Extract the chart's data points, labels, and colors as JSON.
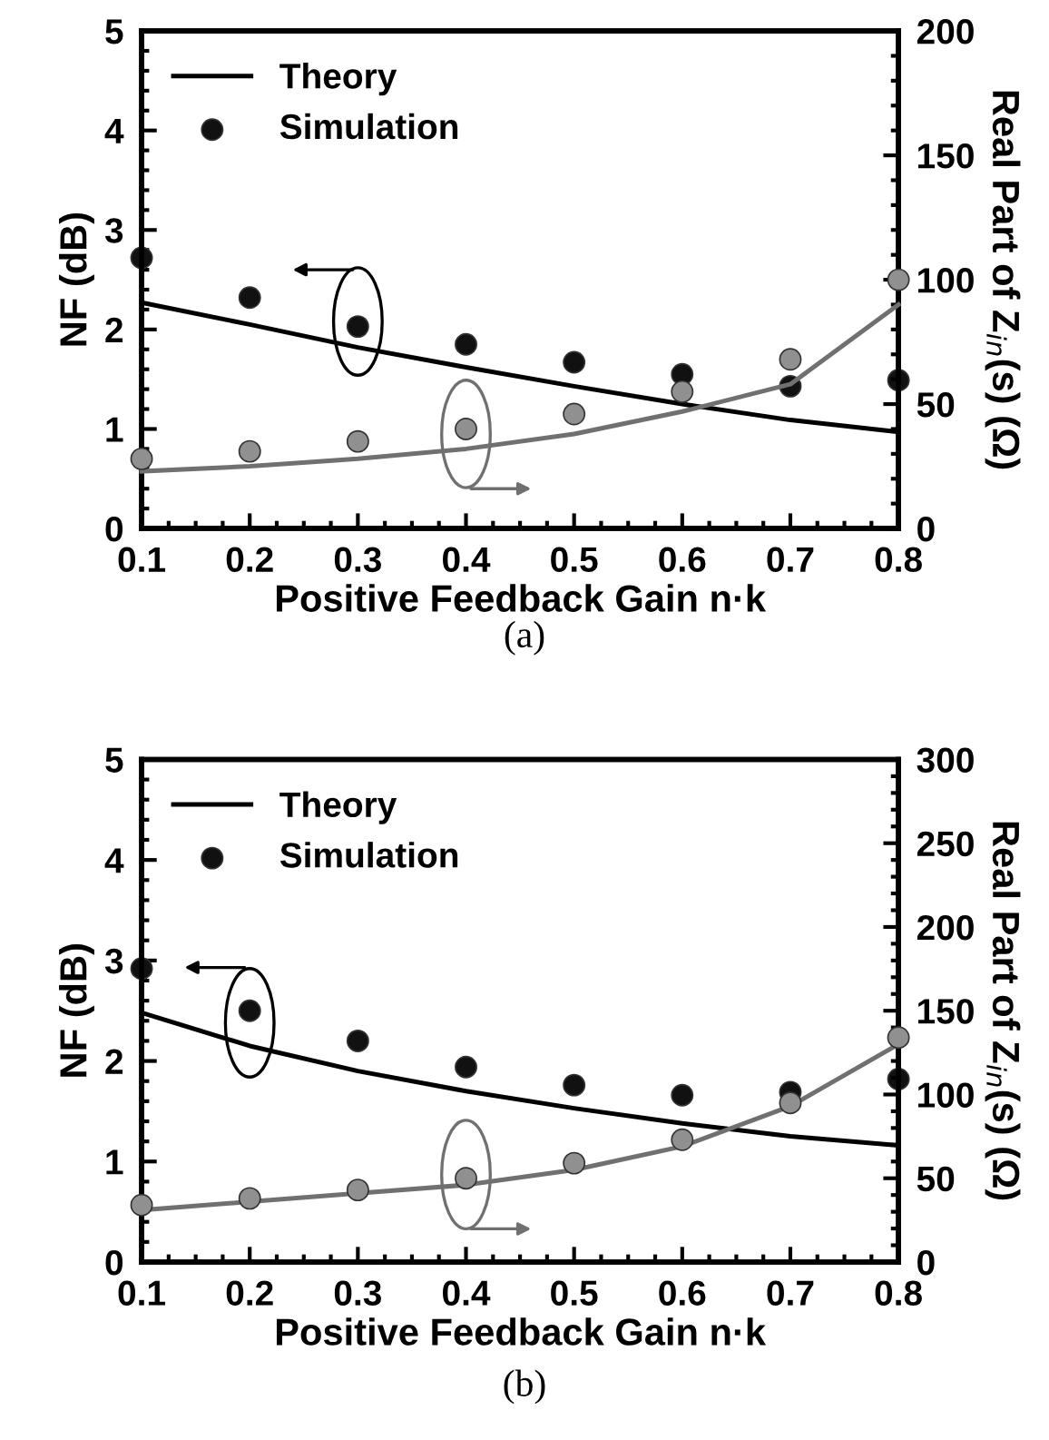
{
  "chart_data": [
    {
      "type": "line",
      "xlabel": "Positive Feedback Gain n·k",
      "ylabel": "NF (dB)",
      "y2label": "Real Part of Z$_{in}$(s) (Ω)",
      "annotations": [
        "(a)"
      ],
      "x": [
        0.1,
        0.2,
        0.3,
        0.4,
        0.5,
        0.6,
        0.7,
        0.8
      ],
      "xlim": [
        0.1,
        0.8
      ],
      "xticks": [
        0.1,
        0.2,
        0.3,
        0.4,
        0.5,
        0.6,
        0.7,
        0.8
      ],
      "ylim": [
        0,
        5
      ],
      "yticks": [
        0,
        1,
        2,
        3,
        4,
        5
      ],
      "y2lim": [
        0,
        200
      ],
      "y2ticks": [
        0,
        50,
        100,
        150,
        200
      ],
      "legend": "top left",
      "grid": false,
      "series": [
        {
          "name": "Theory",
          "color": "#000000",
          "line_style": "solid",
          "values": [
            2.27,
            2.05,
            1.82,
            1.62,
            1.43,
            1.25,
            1.09,
            0.97
          ]
        },
        {
          "name": "Simulation",
          "type": "scatter",
          "marker": "circle",
          "color": "#111111",
          "values": [
            2.72,
            2.32,
            2.03,
            1.85,
            1.67,
            1.55,
            1.43,
            1.49
          ]
        },
        {
          "type": "line",
          "axis": "y2",
          "color": "#707070",
          "line_style": "solid",
          "values": [
            23,
            25,
            28,
            32,
            38,
            47,
            58,
            90
          ]
        },
        {
          "type": "scatter",
          "axis": "y2",
          "marker": "circle",
          "color": "#909090",
          "values": [
            28,
            31,
            35,
            40,
            46,
            55,
            68,
            100
          ]
        }
      ]
    },
    {
      "type": "line",
      "xlabel": "Positive Feedback Gain n·k",
      "ylabel": "NF (dB)",
      "y2label": "Real Part of Z$_{in}$(s) (Ω)",
      "annotations": [
        "(b)"
      ],
      "x": [
        0.1,
        0.2,
        0.3,
        0.4,
        0.5,
        0.6,
        0.7,
        0.8
      ],
      "xlim": [
        0.1,
        0.8
      ],
      "xticks": [
        0.1,
        0.2,
        0.3,
        0.4,
        0.5,
        0.6,
        0.7,
        0.8
      ],
      "ylim": [
        0,
        5
      ],
      "yticks": [
        0,
        1,
        2,
        3,
        4,
        5
      ],
      "y2lim": [
        0,
        300
      ],
      "y2ticks": [
        0,
        50,
        100,
        150,
        200,
        250,
        300
      ],
      "legend": "top left",
      "grid": false,
      "series": [
        {
          "name": "Theory",
          "color": "#000000",
          "line_style": "solid",
          "values": [
            2.48,
            2.15,
            1.9,
            1.7,
            1.53,
            1.38,
            1.25,
            1.16
          ]
        },
        {
          "name": "Simulation",
          "type": "scatter",
          "marker": "circle",
          "color": "#111111",
          "values": [
            2.92,
            2.5,
            2.2,
            1.94,
            1.76,
            1.66,
            1.69,
            1.82
          ]
        },
        {
          "type": "line",
          "axis": "y2",
          "color": "#707070",
          "line_style": "solid",
          "values": [
            31,
            36,
            41,
            46,
            55,
            69,
            93,
            130
          ]
        },
        {
          "type": "scatter",
          "axis": "y2",
          "marker": "circle",
          "color": "#909090",
          "values": [
            34,
            38,
            43,
            50,
            59,
            73,
            95,
            134
          ]
        }
      ]
    }
  ]
}
